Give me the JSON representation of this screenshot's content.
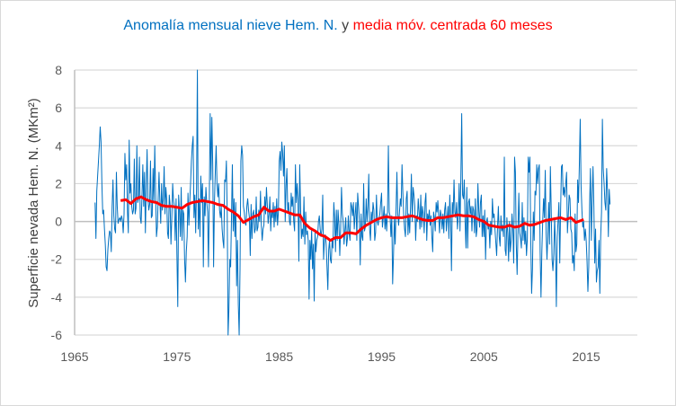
{
  "chart_data": {
    "type": "line",
    "title_parts": [
      {
        "text": "Anomalía mensual nieve Hem. N.",
        "color": "#0070C0"
      },
      {
        "text": " y ",
        "color": "#404040"
      },
      {
        "text": "media móv. centrada 60 meses",
        "color": "#FF0000"
      }
    ],
    "xlabel": "",
    "ylabel": "Superficie nevada Hem. N. (MKm²)",
    "xlim": [
      1965,
      2020
    ],
    "ylim": [
      -6,
      8
    ],
    "x_ticks": [
      "1965",
      "1975",
      "1985",
      "1995",
      "2005",
      "2015"
    ],
    "y_ticks": [
      "8",
      "6",
      "4",
      "2",
      "0",
      "-2",
      "-4",
      "-6"
    ],
    "grid": "horizontal",
    "legend": "none",
    "series": [
      {
        "color": "#0070C0",
        "frequency": "monthly",
        "start": "1967-01",
        "values": [
          1.0,
          -0.9,
          1.6,
          2.4,
          3.2,
          4.0,
          5.0,
          4.2,
          2.0,
          0.4,
          0.6,
          -0.4,
          -1.2,
          -2.4,
          -2.6,
          -1.5,
          -0.9,
          -0.5,
          -0.6,
          -1.6,
          0.8,
          2.2,
          0.3,
          -0.4,
          -0.6,
          2.6,
          0.8,
          -0.1,
          0.1,
          0.2,
          0.0,
          0.3,
          0.1,
          -0.6,
          0.4,
          3.6,
          2.2,
          3.0,
          0.5,
          -0.6,
          4.3,
          1.5,
          2.0,
          0.8,
          0.4,
          0.6,
          3.3,
          0.4,
          0.7,
          4.0,
          1.0,
          1.2,
          3.4,
          0.2,
          -0.1,
          1.3,
          3.0,
          0.8,
          2.6,
          -0.6,
          1.8,
          3.8,
          1.2,
          0.6,
          0.9,
          3.2,
          0.2,
          0.3,
          2.8,
          1.0,
          4.0,
          1.6,
          -0.8,
          -0.3,
          1.2,
          2.6,
          1.1,
          -0.1,
          2.0,
          0.6,
          1.2,
          2.9,
          0.4,
          1.8,
          1.2,
          -0.6,
          -0.9,
          1.4,
          0.9,
          -1.2,
          0.2,
          2.0,
          1.1,
          0.8,
          -1.0,
          1.2,
          -1.8,
          -4.5,
          1.4,
          0.5,
          -0.8,
          1.8,
          -1.0,
          0.6,
          0.4,
          -2.0,
          -3.2,
          -1.6,
          -0.8,
          1.5,
          -0.2,
          1.0,
          2.0,
          3.2,
          4.0,
          4.5,
          0.2,
          1.4,
          -0.6,
          1.8,
          8.0,
          -0.4,
          1.2,
          -0.8,
          2.4,
          1.0,
          2.0,
          -2.4,
          1.3,
          0.3,
          1.8,
          1.0,
          0.5,
          -2.4,
          1.3,
          5.7,
          2.2,
          5.5,
          3.0,
          -2.4,
          1.0,
          2.6,
          4.0,
          2.0,
          1.3,
          2.0,
          0.6,
          0.2,
          0.8,
          -0.4,
          -1.0,
          -1.4,
          2.2,
          2.1,
          3.2,
          0.4,
          -6.0,
          -4.6,
          -2.0,
          -2.4,
          0.2,
          3.0,
          -0.5,
          1.2,
          -0.8,
          1.0,
          -3.4,
          -1.0,
          -4.4,
          -6.0,
          -2.5,
          3.2,
          4.0,
          3.5,
          0.8,
          0.5,
          -0.1,
          -0.2,
          0.8,
          1.2,
          0.6,
          0.2,
          -1.8,
          0.9,
          -0.9,
          0.4,
          0.6,
          -0.6,
          -0.4,
          1.3,
          -0.5,
          -0.3,
          0.6,
          0.0,
          1.6,
          -0.2,
          -1.0,
          -0.4,
          -0.2,
          1.3,
          0.4,
          1.8,
          0.9,
          -0.1,
          0.4,
          1.3,
          -0.5,
          0.6,
          0.2,
          1.0,
          -0.3,
          0.8,
          0.0,
          1.2,
          -0.2,
          0.5,
          3.2,
          3.7,
          2.7,
          4.2,
          3.6,
          2.4,
          4.0,
          0.0,
          1.9,
          2.8,
          0.5,
          1.0,
          0.0,
          -0.2,
          1.5,
          0.8,
          1.3,
          0.0,
          -0.5,
          3.0,
          1.0,
          2.0,
          1.2,
          -2.1,
          3.0,
          0.8,
          -0.9,
          -0.4,
          -0.8,
          1.3,
          -1.2,
          0.5,
          -0.7,
          -0.5,
          -1.0,
          -4.1,
          -1.0,
          -2.0,
          -0.4,
          -2.5,
          -1.2,
          -4.2,
          -0.6,
          -1.6,
          -1.0,
          -0.8,
          0.0,
          0.3,
          -0.4,
          -0.8,
          -0.4,
          1.4,
          -2.0,
          -1.0,
          -0.7,
          -1.2,
          -2.4,
          -3.6,
          -1.5,
          -1.0,
          -2.0,
          -2.2,
          -1.0,
          -1.4,
          1.0,
          0.2,
          -1.6,
          0.6,
          -1.0,
          0.6,
          -0.2,
          -1.8,
          -0.4,
          1.8,
          0.4,
          0.0,
          -1.2,
          -0.5,
          0.2,
          -1.3,
          -0.9,
          0.3,
          -0.6,
          -1.0,
          1.0,
          0.8,
          0.3,
          1.0,
          -0.4,
          0.4,
          1.0,
          -1.0,
          1.5,
          0.8,
          0.0,
          -2.3,
          0.4,
          -0.8,
          -1.0,
          2.0,
          -0.5,
          -0.3,
          1.2,
          0.0,
          0.8,
          2.5,
          -0.4,
          -1.0,
          0.5,
          0.0,
          1.0,
          0.6,
          -1.0,
          -0.6,
          1.4,
          0.0,
          -0.2,
          0.2,
          0.4,
          1.0,
          1.5,
          -0.3,
          0.2,
          0.8,
          -0.4,
          0.4,
          -0.5,
          0.5,
          4.0,
          0.5,
          0.3,
          -0.8,
          0.3,
          -3.3,
          -1.8,
          0.2,
          -1.2,
          0.6,
          2.6,
          0.4,
          -0.2,
          0.5,
          1.2,
          0.8,
          3.0,
          1.5,
          0.3,
          -0.4,
          -0.8,
          1.2,
          1.6,
          -0.7,
          0.4,
          -0.6,
          0.8,
          2.5,
          0.0,
          1.8,
          1.4,
          0.8,
          -1.0,
          0.3,
          0.0,
          1.2,
          0.5,
          -0.4,
          1.4,
          -0.3,
          0.8,
          0.4,
          -0.6,
          1.0,
          1.5,
          -1.0,
          0.4,
          0.0,
          0.6,
          -0.2,
          0.3,
          -0.8,
          -1.6,
          0.5,
          0.2,
          -0.5,
          1.0,
          0.5,
          1.1,
          0.3,
          -0.6,
          0.6,
          0.3,
          -0.4,
          0.4,
          -0.6,
          0.6,
          1.0,
          -0.5,
          0.2,
          0.8,
          -0.9,
          1.4,
          0.2,
          -2.6,
          1.0,
          0.4,
          2.2,
          0.5,
          0.2,
          1.0,
          -0.4,
          0.3,
          2.0,
          -0.5,
          2.3,
          5.7,
          1.4,
          1.2,
          2.2,
          0.0,
          -1.4,
          1.8,
          -1.4,
          1.0,
          1.2,
          0.4,
          0.8,
          -0.5,
          0.8,
          0.6,
          -0.6,
          1.2,
          -0.8,
          -0.4,
          2.0,
          0.6,
          -0.3,
          1.0,
          1.4,
          -0.8,
          0.3,
          -0.8,
          0.6,
          -2.0,
          0.0,
          0.2,
          -0.4,
          -0.2,
          -1.4,
          0.0,
          -0.7,
          1.2,
          0.2,
          0.4,
          -0.4,
          -1.1,
          -1.8,
          -0.3,
          0.8,
          -0.8,
          -1.3,
          0.3,
          -0.5,
          -0.2,
          -0.8,
          3.4,
          -1.5,
          -1.8,
          0.2,
          -0.6,
          -2.1,
          0.0,
          -1.6,
          -1.0,
          0.4,
          -0.4,
          -2.2,
          3.4,
          2.6,
          -1.2,
          -2.8,
          -0.5,
          1.5,
          -0.6,
          -0.9,
          -1.4,
          1.0,
          -1.0,
          0.2,
          -1.2,
          -0.5,
          -1.8,
          -0.9,
          3.4,
          2.6,
          3.4,
          -1.0,
          -3.8,
          -2.5,
          0.5,
          -1.0,
          1.6,
          1.4,
          3.0,
          2.0,
          2.8,
          3.0,
          -1.6,
          -4.0,
          -1.6,
          0.0,
          1.2,
          0.2,
          2.7,
          -0.6,
          -2.0,
          -0.8,
          1.0,
          -1.2,
          2.9,
          0.6,
          -2.0,
          -2.6,
          -1.7,
          0.2,
          -1.4,
          -4.5,
          -0.8,
          0.0,
          1.0,
          -2.2,
          0.6,
          2.9,
          3.0,
          1.4,
          1.8,
          1.3,
          2.0,
          2.6,
          -0.6,
          0.3,
          1.4,
          1.2,
          -0.4,
          -0.6,
          -2.2,
          -1.8,
          -2.6,
          0.4,
          -1.6,
          -1.2,
          2.2,
          1.0,
          3.0,
          5.4,
          1.9,
          0.6,
          -0.3,
          0.0,
          -1.0,
          -0.4,
          -1.0,
          -2.1,
          -3.7,
          -2.4,
          0.8,
          2.8,
          -1.0,
          1.2,
          2.9,
          0.8,
          -2.2,
          -0.4,
          -3.2,
          -2.6,
          -2.4,
          -1.0,
          -3.8,
          -0.8,
          0.5,
          5.4,
          2.8,
          2.0,
          1.0,
          0.6,
          2.8,
          1.6,
          -0.8,
          1.7,
          0.9
        ]
      },
      {
        "color": "#FF0000",
        "x": [
          1969.5,
          1970,
          1970.5,
          1971,
          1971.5,
          1972,
          1972.5,
          1973,
          1973.5,
          1974,
          1974.5,
          1975,
          1975.5,
          1976,
          1976.5,
          1977,
          1977.5,
          1978,
          1978.5,
          1979,
          1979.5,
          1980,
          1980.5,
          1981,
          1981.5,
          1982,
          1982.5,
          1983,
          1983.5,
          1984,
          1984.5,
          1985,
          1985.5,
          1986,
          1986.5,
          1987,
          1987.5,
          1988,
          1988.5,
          1989,
          1989.5,
          1990,
          1990.5,
          1991,
          1991.5,
          1992,
          1992.5,
          1993,
          1993.5,
          1994,
          1994.5,
          1995,
          1995.5,
          1996,
          1996.5,
          1997,
          1997.5,
          1998,
          1998.5,
          1999,
          1999.5,
          2000,
          2000.5,
          2001,
          2001.5,
          2002,
          2002.5,
          2003,
          2003.5,
          2004,
          2004.5,
          2005,
          2005.5,
          2006,
          2006.5,
          2007,
          2007.5,
          2008,
          2008.5,
          2009,
          2009.5,
          2010,
          2010.5,
          2011,
          2011.5,
          2012,
          2012.5,
          2013,
          2013.5,
          2014,
          2014.5,
          2014.75
        ],
        "values": [
          1.1,
          1.15,
          0.95,
          1.2,
          1.3,
          1.15,
          1.05,
          1.0,
          0.85,
          0.8,
          0.8,
          0.75,
          0.7,
          0.9,
          1.0,
          1.05,
          1.1,
          1.05,
          1.0,
          0.9,
          0.85,
          0.65,
          0.5,
          0.3,
          -0.05,
          0.1,
          0.25,
          0.35,
          0.75,
          0.55,
          0.55,
          0.65,
          0.55,
          0.45,
          0.35,
          0.35,
          -0.1,
          -0.35,
          -0.5,
          -0.7,
          -0.8,
          -1.0,
          -0.85,
          -0.85,
          -0.6,
          -0.6,
          -0.65,
          -0.4,
          -0.2,
          -0.05,
          0.1,
          0.2,
          0.25,
          0.2,
          0.2,
          0.2,
          0.25,
          0.3,
          0.2,
          0.1,
          0.05,
          0.05,
          0.2,
          0.2,
          0.25,
          0.3,
          0.35,
          0.3,
          0.3,
          0.25,
          0.1,
          0.0,
          -0.2,
          -0.25,
          -0.3,
          -0.3,
          -0.2,
          -0.3,
          -0.25,
          -0.1,
          -0.2,
          -0.15,
          -0.05,
          0.05,
          0.1,
          0.15,
          0.2,
          0.1,
          0.2,
          -0.05,
          0.05,
          0.1
        ]
      }
    ]
  }
}
